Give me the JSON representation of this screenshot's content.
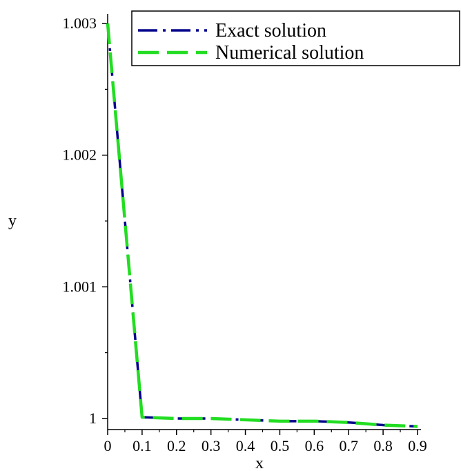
{
  "chart_data": {
    "type": "line",
    "xlabel": "x",
    "ylabel": "y",
    "xlim": [
      0,
      0.9
    ],
    "ylim": [
      0.99995,
      1.00302
    ],
    "x_ticks": [
      0,
      0.1,
      0.2,
      0.3,
      0.4,
      0.5,
      0.6,
      0.7,
      0.8,
      0.9
    ],
    "x_tick_labels": [
      "0",
      "0.1",
      "0.2",
      "0.3",
      "0.4",
      "0.5",
      "0.6",
      "0.7",
      "0.8",
      "0.9"
    ],
    "y_ticks": [
      1,
      1.001,
      1.002,
      1.003
    ],
    "y_tick_labels": [
      "1",
      "1.001",
      "1.002",
      "1.003"
    ],
    "legend_position": "top-right",
    "grid": false,
    "series": [
      {
        "name": "Exact solution",
        "color": "#00008b",
        "dash": "long-dash-dot",
        "x": [
          0,
          0.1,
          0.2,
          0.3,
          0.4,
          0.5,
          0.6,
          0.7,
          0.8,
          0.9
        ],
        "y": [
          1.003,
          1.00001,
          1.0,
          1.0,
          0.99999,
          0.99998,
          0.99998,
          0.99997,
          0.99995,
          0.99994
        ]
      },
      {
        "name": "Numerical solution",
        "color": "#22dd22",
        "dash": "long-dash",
        "x": [
          0,
          0.1,
          0.2,
          0.3,
          0.4,
          0.5,
          0.6,
          0.7,
          0.8,
          0.9
        ],
        "y": [
          1.003,
          1.00001,
          1.0,
          1.0,
          0.99999,
          0.99998,
          0.99998,
          0.99997,
          0.99995,
          0.99994
        ]
      }
    ]
  }
}
